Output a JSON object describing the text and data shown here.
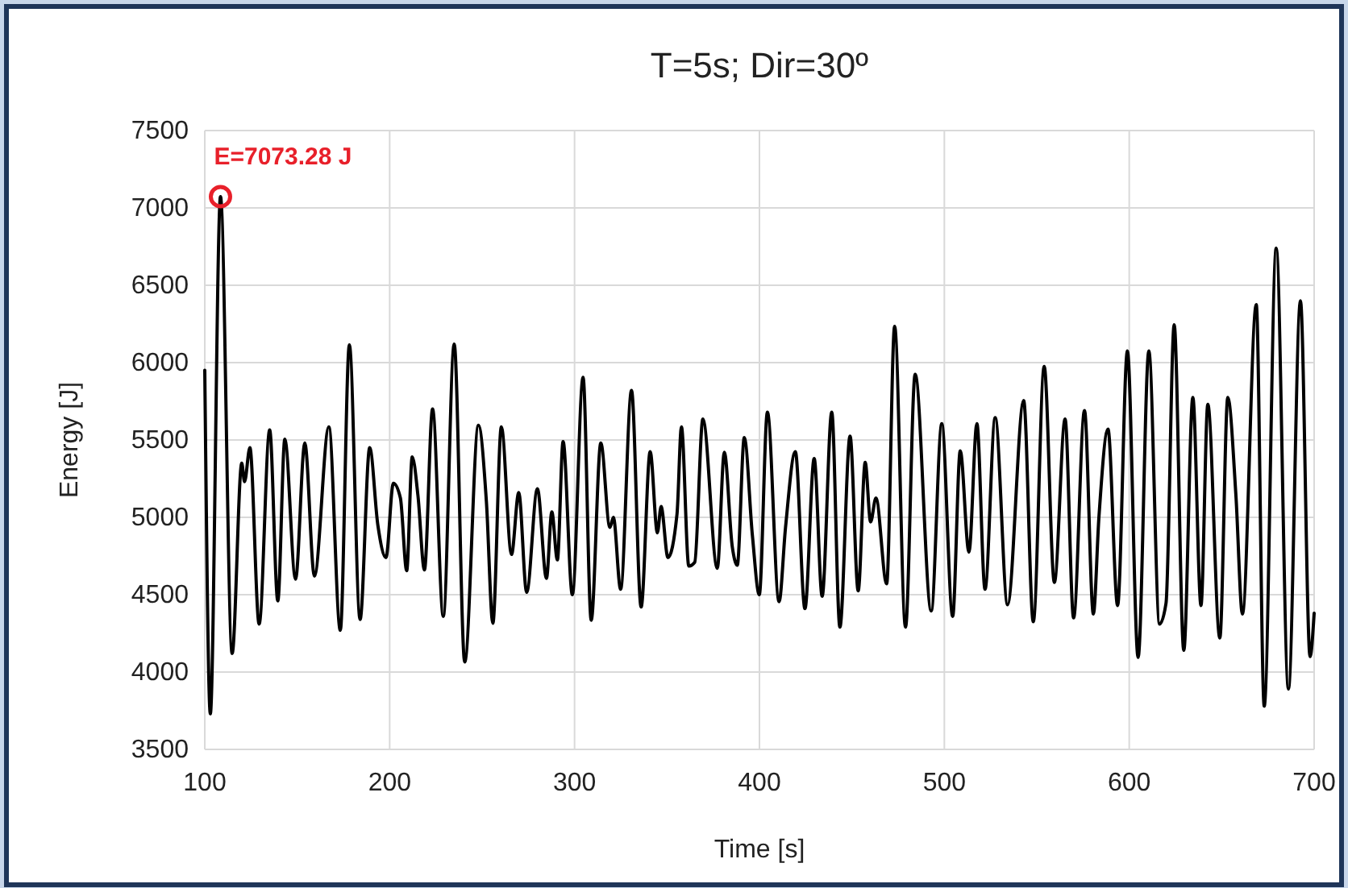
{
  "chart_data": {
    "type": "line",
    "title": "T=5s; Dir=30º",
    "xlabel": "Time [s]",
    "ylabel": "Energy [J]",
    "xlim": [
      100,
      700
    ],
    "xticks": [
      100,
      200,
      300,
      400,
      500,
      600,
      700
    ],
    "ylim": [
      3500,
      7500
    ],
    "yticks": [
      3500,
      4000,
      4500,
      5000,
      5500,
      6000,
      6500,
      7000,
      7500
    ],
    "grid": true,
    "marker": "none",
    "line_style": "solid",
    "annotations": [
      {
        "text": "E=7073.28 J",
        "x": 108.5,
        "y": 7073.28
      }
    ],
    "series": [
      {
        "color": "#000000",
        "x": [
          100,
          103,
          108.5,
          114.8,
          120,
          121.5,
          124.4,
          129.4,
          135.1,
          139.5,
          143.3,
          149.1,
          154.1,
          159.3,
          167.1,
          173.3,
          178.2,
          184,
          189.2,
          193.6,
          198,
          202,
          205.8,
          209.2,
          212.2,
          215.3,
          218.8,
          223.2,
          229,
          234.9,
          240.6,
          248,
          252.3,
          255.8,
          260.4,
          265.9,
          269.8,
          274.1,
          279.9,
          284.8,
          287.7,
          290.7,
          293.8,
          298.8,
          304.6,
          309,
          314.2,
          319.1,
          321,
          324.9,
          330.8,
          336,
          340.9,
          344.8,
          346.8,
          350.5,
          355.4,
          357.8,
          361.8,
          365,
          369.4,
          377.2,
          381,
          385.3,
          388,
          391.8,
          396.2,
          399.9,
          404.3,
          410.6,
          414.1,
          419.4,
          424.6,
          429.6,
          433.9,
          439.1,
          443.5,
          449,
          453.4,
          457.2,
          460.1,
          463,
          468.8,
          473.1,
          479,
          484.2,
          492.9,
          498.6,
          504.5,
          508.6,
          513.3,
          517.6,
          522,
          527.5,
          534.2,
          542.9,
          548.1,
          554,
          559.5,
          565.3,
          569.9,
          575.8,
          580.6,
          583.6,
          588.5,
          593.7,
          599,
          604.8,
          610.6,
          616.4,
          619.9,
          624.3,
          629.5,
          634.4,
          638.8,
          642.5,
          649,
          653.3,
          657.7,
          661.2,
          668.7,
          673,
          679.5,
          686.1,
          692.6,
          697.8,
          700
        ],
        "values": [
          5950,
          3730,
          7073.28,
          4120,
          5350,
          5230,
          5450,
          4310,
          5565,
          4460,
          5505,
          4600,
          5480,
          4620,
          5585,
          4270,
          6115,
          4340,
          5450,
          4950,
          4740,
          5220,
          5125,
          4655,
          5390,
          5140,
          4660,
          5700,
          4360,
          6120,
          4065,
          5595,
          5105,
          4315,
          5585,
          4760,
          5160,
          4515,
          5185,
          4605,
          5035,
          4725,
          5490,
          4500,
          5905,
          4335,
          5480,
          4935,
          5000,
          4535,
          5820,
          4420,
          5425,
          4900,
          5070,
          4740,
          5020,
          5585,
          4685,
          4710,
          5635,
          4670,
          5420,
          4810,
          4690,
          5515,
          4880,
          4500,
          5680,
          4455,
          4935,
          5425,
          4410,
          5380,
          4490,
          5680,
          4290,
          5525,
          4525,
          5355,
          4970,
          5125,
          4570,
          6235,
          4290,
          5925,
          4395,
          5605,
          4360,
          5430,
          4775,
          5605,
          4535,
          5645,
          4435,
          5755,
          4325,
          5975,
          4580,
          5635,
          4350,
          5690,
          4375,
          5000,
          5570,
          4430,
          6075,
          4095,
          6075,
          4310,
          4445,
          6245,
          4140,
          5775,
          4430,
          5730,
          4220,
          5775,
          5140,
          4375,
          6375,
          3780,
          6740,
          3890,
          6400,
          4100,
          4380
        ]
      }
    ]
  }
}
